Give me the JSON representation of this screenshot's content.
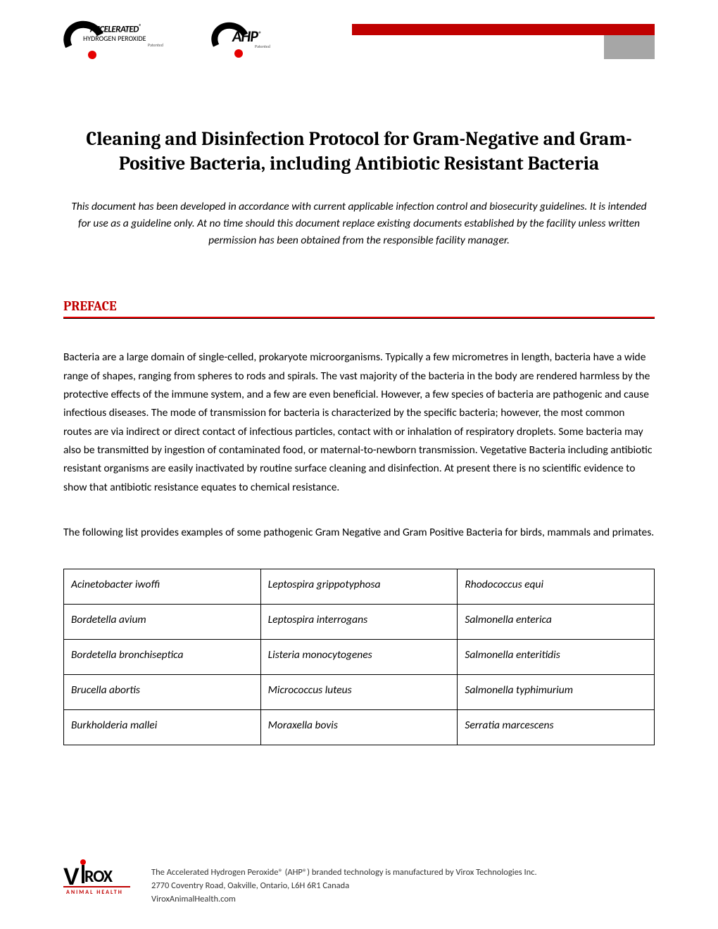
{
  "header": {
    "logo1": {
      "line1": "ACCELERATED",
      "line2": "HYDROGEN PEROXIDE",
      "reg": "®",
      "patented": "Patented"
    },
    "logo2": {
      "text": "AHP",
      "reg": "®",
      "patented": "Patented"
    },
    "bar_red_color": "#c00000",
    "bar_grey_color": "#a6a6a6"
  },
  "title": "Cleaning and Disinfection Protocol for Gram-Negative and Gram-Positive Bacteria, including Antibiotic Resistant Bacteria",
  "disclaimer": "This document has been developed in accordance with current applicable infection control and biosecurity guidelines.  It is intended for use as a guideline only.  At no time should this document replace existing documents established by the facility unless written permission has been obtained from the responsible facility manager.",
  "preface": {
    "heading": "PREFACE",
    "heading_color": "#c00000",
    "rule_color": "#e60000",
    "para1": "Bacteria are a large domain of single-celled, prokaryote microorganisms. Typically a few micrometres in length, bacteria have a wide range of shapes, ranging from spheres to rods and spirals.  The vast majority of the bacteria in the body are rendered harmless by the protective effects of the immune system, and a few are even beneficial. However, a few species of bacteria are pathogenic and cause infectious diseases. The mode of transmission for bacteria is characterized by the specific bacteria; however, the most common routes are via indirect or direct contact of infectious particles, contact with or inhalation of respiratory droplets.  Some bacteria may also be transmitted by ingestion of contaminated food, or maternal-to-newborn transmission.  Vegetative Bacteria including antibiotic resistant organisms are easily inactivated by routine surface cleaning and disinfection.  At present there is no scientific evidence to show that antibiotic resistance equates to chemical resistance.",
    "para2": "The following list provides examples of some pathogenic Gram Negative and Gram Positive Bacteria for birds, mammals and primates."
  },
  "bacteria_table": {
    "rows": [
      [
        "Acinetobacter iwoffi",
        "Leptospira  grippotyphosa",
        "Rhodococcus equi"
      ],
      [
        "Bordetella avium",
        "Leptospira interrogans",
        "Salmonella enterica"
      ],
      [
        "Bordetella bronchiseptica",
        "Listeria monocytogenes",
        "Salmonella enteritidis"
      ],
      [
        "Brucella abortis",
        "Micrococcus luteus",
        "Salmonella typhimurium"
      ],
      [
        "Burkholderia mallei",
        "Moraxella bovis",
        "Serratia marcescens"
      ]
    ]
  },
  "footer": {
    "logo": {
      "brand": "V",
      "rest": "ROX",
      "sub": "ANIMAL HEALTH",
      "tm": "™"
    },
    "line1": "The Accelerated Hydrogen Peroxide® (AHP®) branded technology is manufactured by Virox Technologies Inc.",
    "line2": "2770 Coventry Road, Oakville, Ontario, L6H 6R1 Canada",
    "line3": "ViroxAnimalHealth.com"
  }
}
